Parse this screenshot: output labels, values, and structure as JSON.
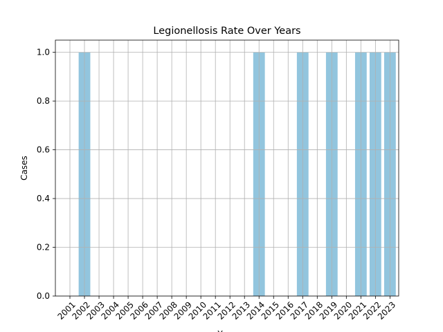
{
  "chart_data": {
    "type": "bar",
    "title": "Legionellosis Rate Over Years",
    "xlabel": "Y",
    "ylabel": "Cases",
    "categories": [
      "2001",
      "2002",
      "2003",
      "2004",
      "2005",
      "2006",
      "2007",
      "2008",
      "2009",
      "2010",
      "2011",
      "2012",
      "2013",
      "2014",
      "2015",
      "2016",
      "2017",
      "2018",
      "2019",
      "2020",
      "2021",
      "2022",
      "2023"
    ],
    "values": [
      0,
      1,
      0,
      0,
      0,
      0,
      0,
      0,
      0,
      0,
      0,
      0,
      0,
      1,
      0,
      0,
      1,
      0,
      1,
      0,
      1,
      1,
      1
    ],
    "ylim": [
      0,
      1.05
    ],
    "yticks": [
      "0.0",
      "0.2",
      "0.4",
      "0.6",
      "0.8",
      "1.0"
    ],
    "grid": true,
    "bar_color": "#92c5de"
  }
}
